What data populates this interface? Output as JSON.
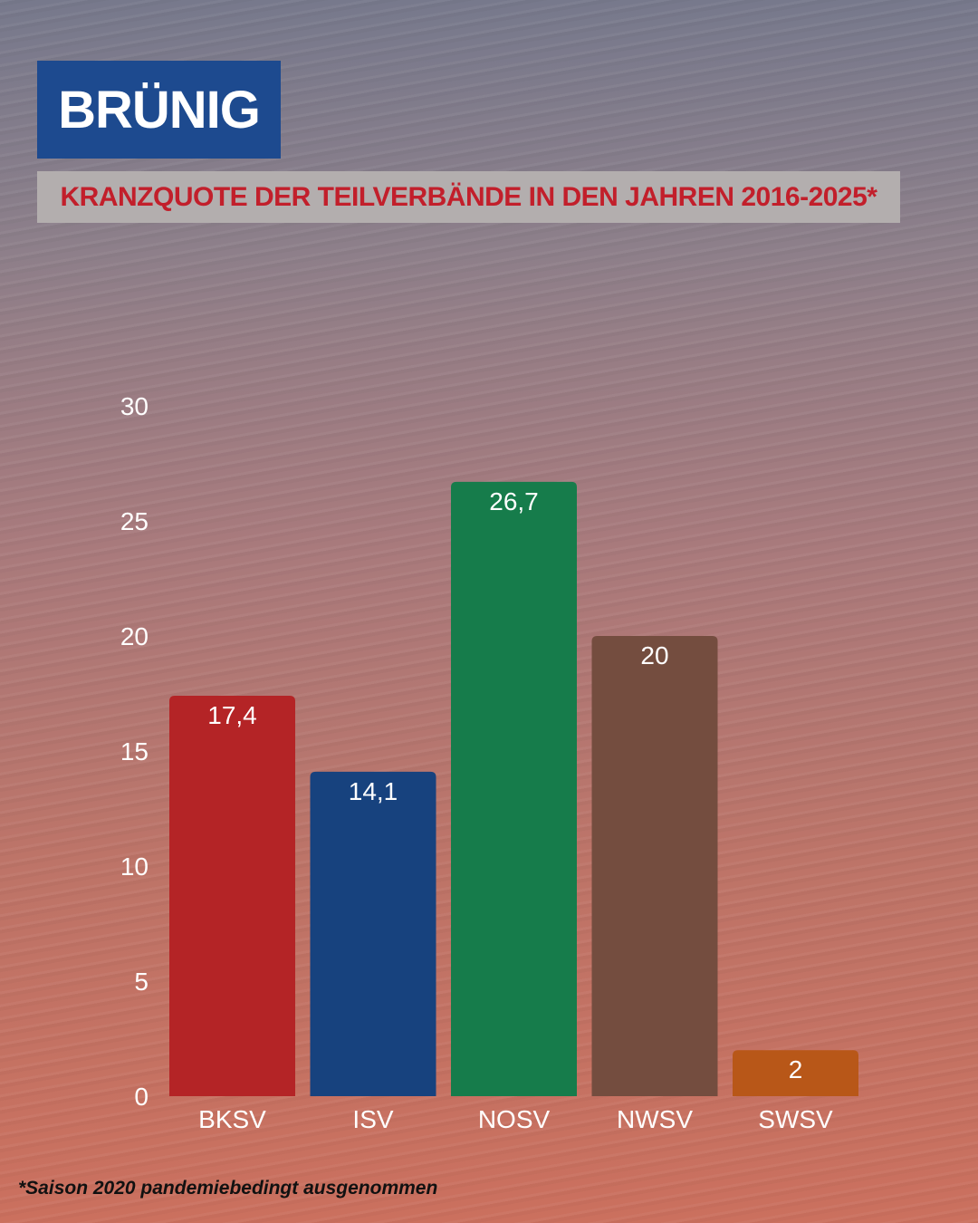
{
  "header": {
    "title": "BRÜNIG",
    "subtitle": "KRANZQUOTE DER TEILVERBÄNDE IN DEN JAHREN 2016-2025*"
  },
  "footnote": "*Saison 2020 pandemiebedingt ausgenommen",
  "chart_data": {
    "type": "bar",
    "title": "KRANZQUOTE DER TEILVERBÄNDE IN DEN JAHREN 2016-2025*",
    "categories": [
      "BKSV",
      "ISV",
      "NOSV",
      "NWSV",
      "SWSV"
    ],
    "values": [
      17.4,
      14.1,
      26.7,
      20,
      2
    ],
    "value_labels": [
      "17,4",
      "14,1",
      "26,7",
      "20",
      "2"
    ],
    "colors": [
      "#b42426",
      "#17427e",
      "#167c4b",
      "#744d3f",
      "#b85718"
    ],
    "yticks": [
      0,
      5,
      10,
      15,
      20,
      25,
      30
    ],
    "ylim": [
      0,
      30
    ],
    "xlabel": "",
    "ylabel": "",
    "grid": false
  }
}
